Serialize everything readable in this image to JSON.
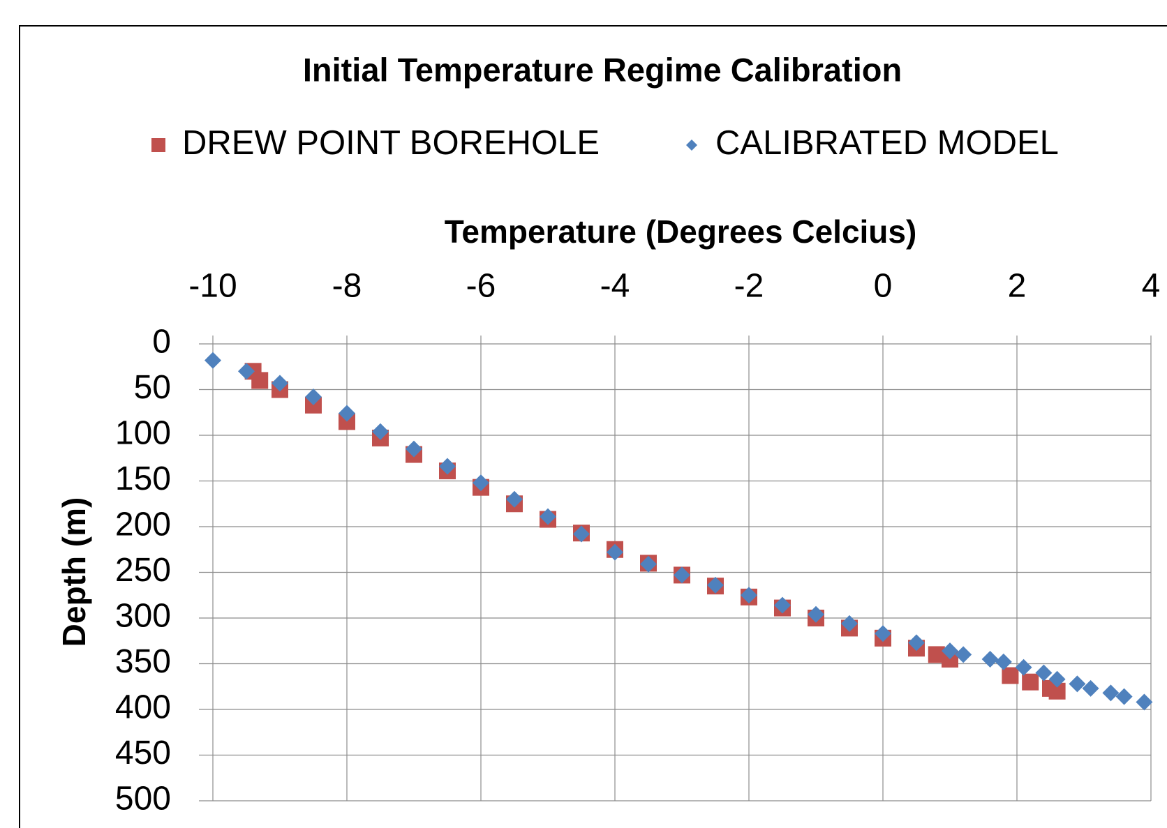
{
  "chart_data": {
    "type": "scatter",
    "title": "Initial Temperature Regime Calibration",
    "x_label": "Temperature (Degrees Celcius)",
    "y_label": "Depth (m)",
    "x_axis_position": "top",
    "y_reversed": true,
    "grid": true,
    "legend": "top",
    "xlim": [
      -10,
      4
    ],
    "xticks": [
      -10,
      -8,
      -6,
      -4,
      -2,
      0,
      2,
      4
    ],
    "ylim": [
      0,
      500
    ],
    "yticks": [
      0,
      50,
      100,
      150,
      200,
      250,
      300,
      350,
      400,
      450,
      500
    ],
    "series": [
      {
        "name": "DREW POINT BOREHOLE",
        "color": "#c0504d",
        "marker": "square",
        "x": [
          -9.4,
          -9.3,
          -9,
          -8.5,
          -8,
          -7.5,
          -7,
          -6.5,
          -6,
          -5.5,
          -5,
          -4.5,
          -4,
          -3.5,
          -3,
          -2.5,
          -2,
          -1.5,
          -1,
          -0.5,
          0,
          0.5,
          0.8,
          1,
          1.9,
          2.2,
          2.5,
          2.6
        ],
        "values": [
          30,
          40,
          50,
          67,
          85,
          103,
          121,
          139,
          157,
          175,
          192,
          207,
          225,
          240,
          253,
          265,
          277,
          289,
          300,
          311,
          322,
          333,
          340,
          345,
          363,
          370,
          377,
          380
        ]
      },
      {
        "name": "CALIBRATED MODEL",
        "color": "#4f81bd",
        "marker": "diamond",
        "x": [
          -10,
          -9.5,
          -9,
          -8.5,
          -8,
          -7.5,
          -7,
          -6.5,
          -6,
          -5.5,
          -5,
          -4.5,
          -4,
          -3.5,
          -3,
          -2.5,
          -2,
          -1.5,
          -1,
          -0.5,
          0,
          0.5,
          1,
          1.2,
          1.6,
          1.8,
          2.1,
          2.4,
          2.6,
          2.9,
          3.1,
          3.4,
          3.6,
          3.9
        ],
        "values": [
          18,
          30,
          43,
          58,
          76,
          96,
          115,
          134,
          152,
          170,
          189,
          208,
          228,
          241,
          253,
          264,
          275,
          286,
          296,
          306,
          317,
          327,
          336,
          340,
          345,
          348,
          354,
          360,
          367,
          372,
          377,
          382,
          386,
          392
        ]
      }
    ]
  }
}
